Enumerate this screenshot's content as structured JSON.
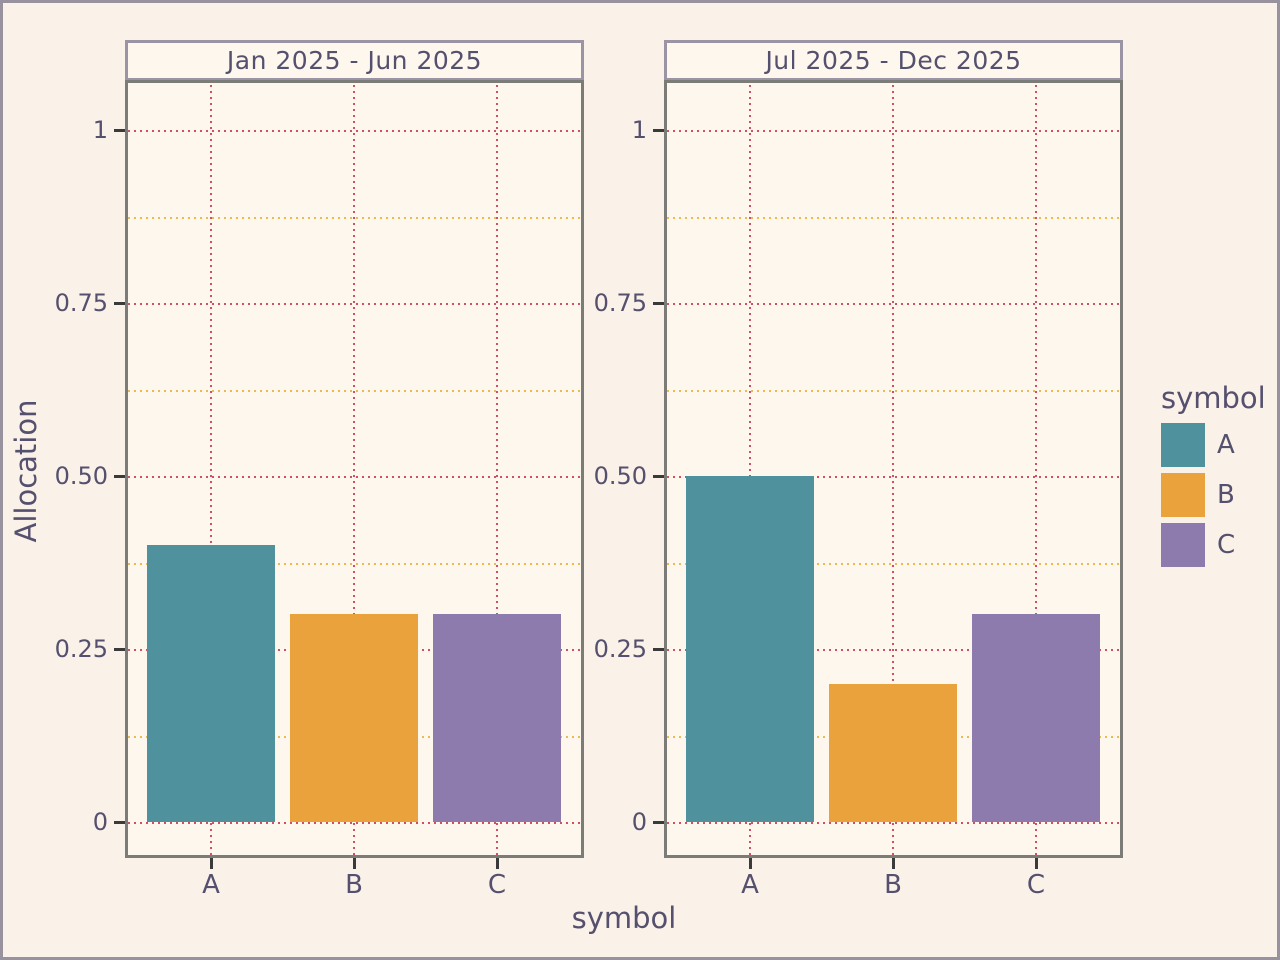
{
  "figure": {
    "background": "#faf1e8",
    "outer_border_color": "#98929f",
    "panel_background": "#fdf7ee",
    "panel_border_color": "#7b7b78",
    "strip_border_color": "#9a94a4",
    "text_color": "#55506e",
    "tick_mark_color": "#3a3a3a",
    "grid_major_color": "#d14e63",
    "grid_minor_color": "#ecba4f"
  },
  "chart_data": {
    "type": "bar",
    "faceted": true,
    "facets": [
      {
        "title": "Jan 2025 - Jun 2025",
        "categories": [
          "A",
          "B",
          "C"
        ],
        "values": [
          0.4,
          0.3,
          0.3
        ]
      },
      {
        "title": "Jul 2025 - Dec 2025",
        "categories": [
          "A",
          "B",
          "C"
        ],
        "values": [
          0.5,
          0.2,
          0.3
        ]
      }
    ],
    "series_colors": {
      "A": "#4f929e",
      "B": "#e9a23c",
      "C": "#8d7bad"
    },
    "xlabel": "symbol",
    "ylabel": "Allocation",
    "ylim": [
      0,
      1.05
    ],
    "y_major_ticks": [
      {
        "value": 0,
        "label": "0"
      },
      {
        "value": 0.25,
        "label": "0.25"
      },
      {
        "value": 0.5,
        "label": "0.50"
      },
      {
        "value": 0.75,
        "label": "0.75"
      },
      {
        "value": 1,
        "label": "1"
      }
    ],
    "y_minor_ticks": [
      0.125,
      0.375,
      0.625,
      0.875
    ],
    "grid": "dotted major (rose) and dotted minor (amber), horizontal minor only",
    "legend": {
      "title": "symbol",
      "position": "right",
      "entries": [
        {
          "label": "A",
          "color": "#4f929e"
        },
        {
          "label": "B",
          "color": "#e9a23c"
        },
        {
          "label": "C",
          "color": "#8d7bad"
        }
      ]
    }
  }
}
